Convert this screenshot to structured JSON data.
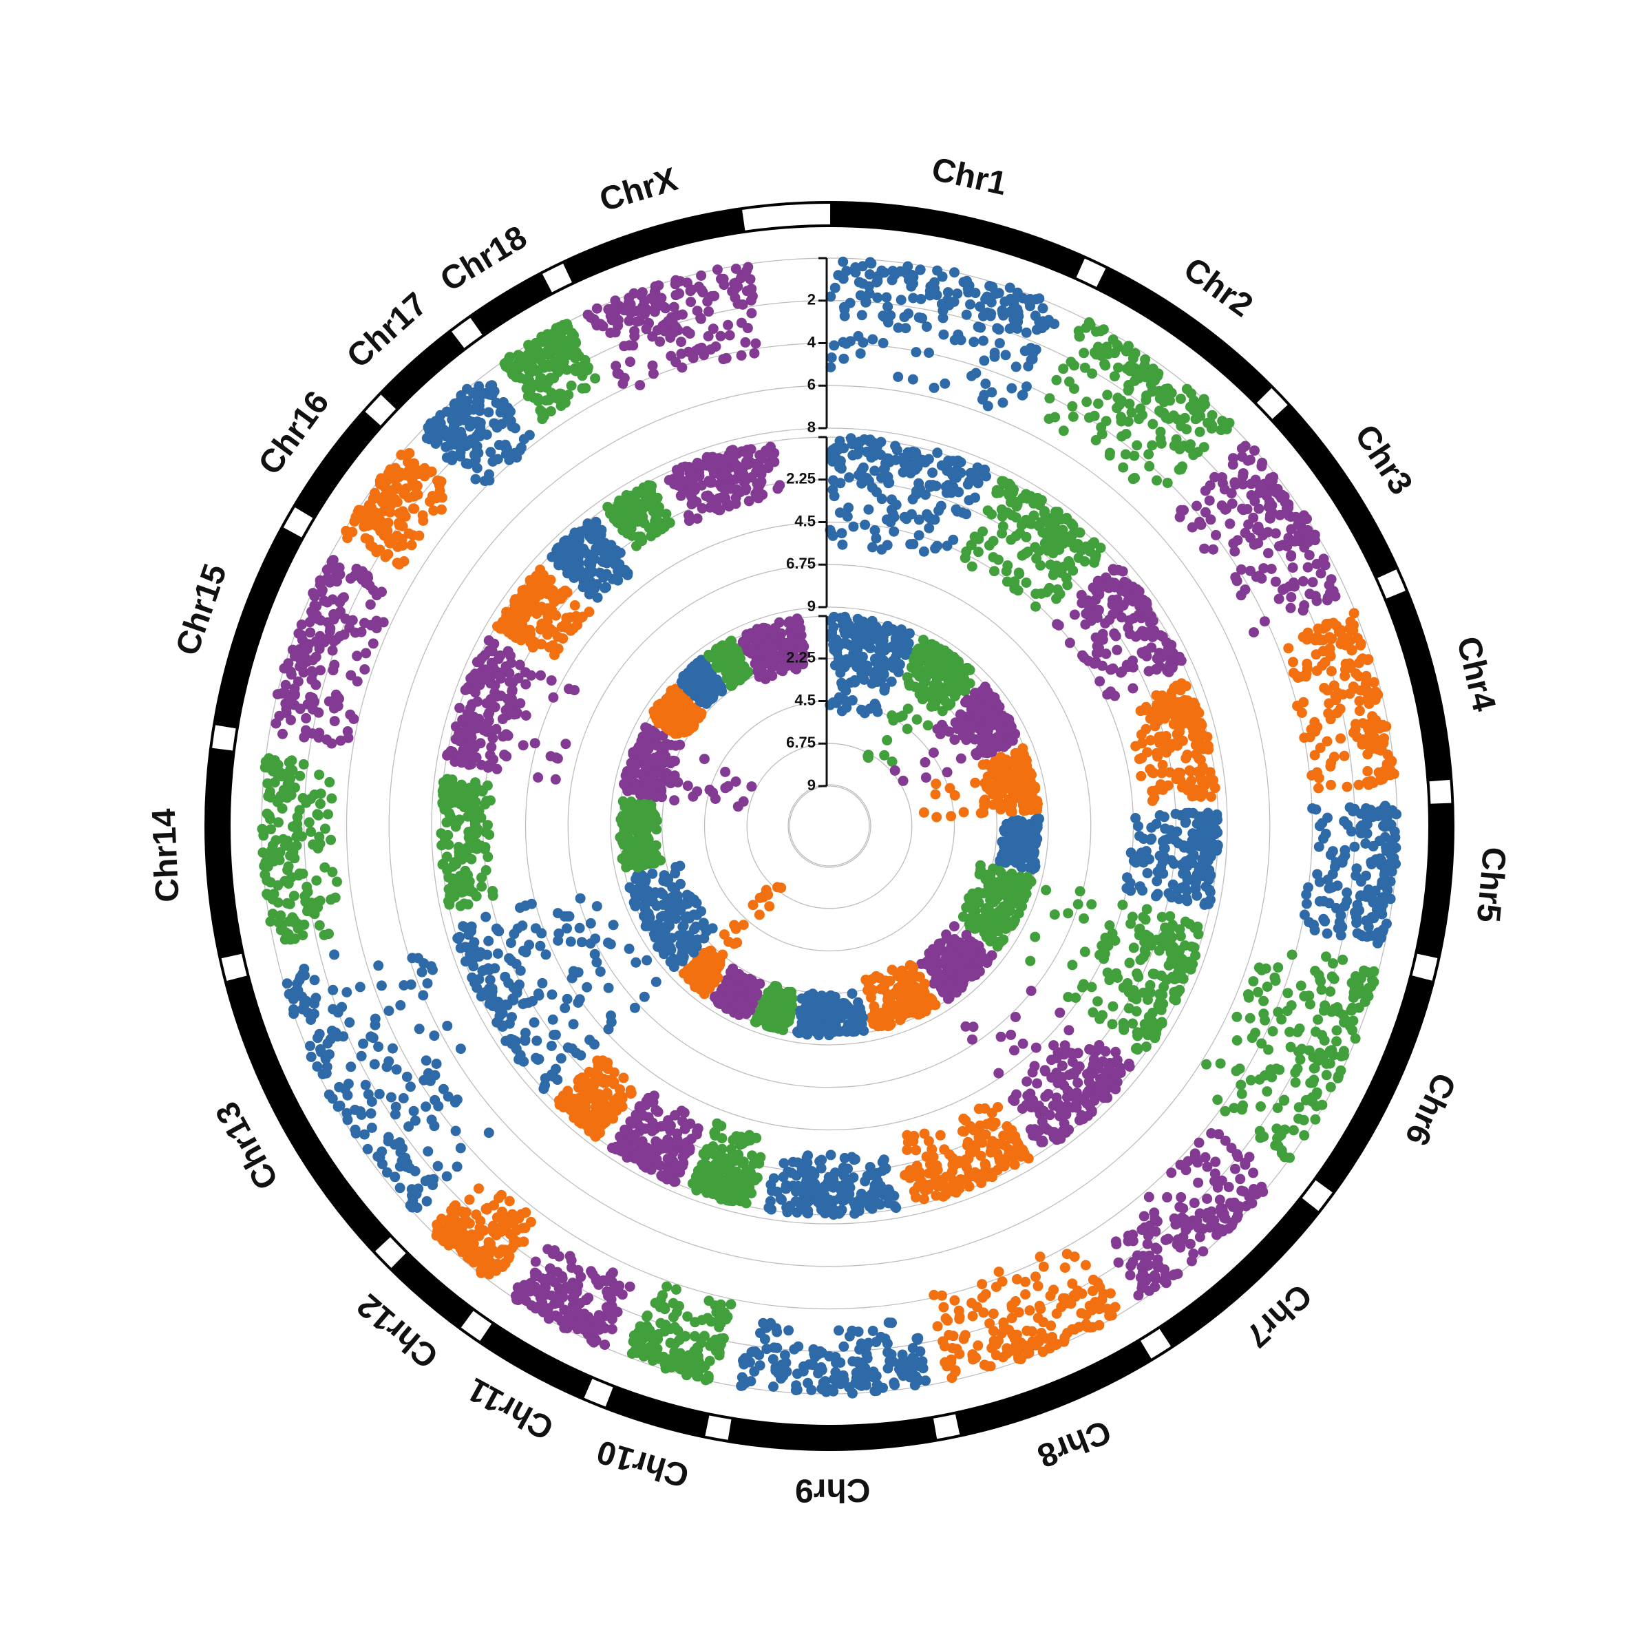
{
  "colors": {
    "blue": "#2e6aa8",
    "green": "#41a03c",
    "purple": "#833a92",
    "orange": "#f2700f",
    "outer_band": "#000000",
    "grid": "#bdbdbd"
  },
  "chart_data": {
    "type": "scatter",
    "layout": "circular-manhattan",
    "title": "",
    "xlabel": "",
    "ylabel": "",
    "grid": true,
    "legend": "none",
    "chromosomes": [
      {
        "name": "Chr1",
        "length": 175,
        "color": "blue"
      },
      {
        "name": "Chr2",
        "length": 137,
        "color": "green"
      },
      {
        "name": "Chr3",
        "length": 132,
        "color": "purple"
      },
      {
        "name": "Chr4",
        "length": 130,
        "color": "orange"
      },
      {
        "name": "Chr5",
        "length": 104,
        "color": "blue"
      },
      {
        "name": "Chr6",
        "length": 157,
        "color": "green"
      },
      {
        "name": "Chr7",
        "length": 134,
        "color": "purple"
      },
      {
        "name": "Chr8",
        "length": 138,
        "color": "orange"
      },
      {
        "name": "Chr9",
        "length": 140,
        "color": "blue"
      },
      {
        "name": "Chr10",
        "length": 69,
        "color": "green"
      },
      {
        "name": "Chr11",
        "length": 79,
        "color": "purple"
      },
      {
        "name": "Chr12",
        "length": 61,
        "color": "orange"
      },
      {
        "name": "Chr13",
        "length": 208,
        "color": "blue"
      },
      {
        "name": "Chr14",
        "length": 141,
        "color": "green"
      },
      {
        "name": "Chr15",
        "length": 140,
        "color": "purple"
      },
      {
        "name": "Chr16",
        "length": 79,
        "color": "orange"
      },
      {
        "name": "Chr17",
        "length": 63,
        "color": "blue"
      },
      {
        "name": "Chr18",
        "length": 56,
        "color": "green"
      },
      {
        "name": "ChrX",
        "length": 125,
        "color": "purple"
      }
    ],
    "tracks": [
      {
        "track": "outer",
        "ylim": [
          0,
          8
        ],
        "tick_labels": [
          "2",
          "4",
          "6",
          "8"
        ],
        "series": [
          {
            "chromosome": "Chr1",
            "values": [
              1.0,
              1.6,
              2.3,
              2.8,
              3.4,
              4.2,
              5.1,
              5.6
            ]
          },
          {
            "chromosome": "Chr2",
            "values": [
              1.0,
              1.8,
              2.6,
              3.5,
              4.3,
              5.3
            ]
          },
          {
            "chromosome": "Chr3",
            "values": [
              1.0,
              1.8,
              2.5,
              3.2,
              4.2,
              4.9
            ]
          },
          {
            "chromosome": "Chr4",
            "values": [
              1.0,
              1.6,
              2.3,
              3.0,
              3.6,
              4.0
            ]
          },
          {
            "chromosome": "Chr5",
            "values": [
              1.0,
              1.8,
              2.6,
              3.4,
              4.1
            ]
          },
          {
            "chromosome": "Chr6",
            "values": [
              1.0,
              2.0,
              3.0,
              3.9,
              4.8,
              5.8
            ]
          },
          {
            "chromosome": "Chr7",
            "values": [
              1.0,
              1.7,
              2.4,
              3.1,
              3.9
            ]
          },
          {
            "chromosome": "Chr8",
            "values": [
              1.0,
              1.8,
              2.6,
              3.4,
              4.3
            ]
          },
          {
            "chromosome": "Chr9",
            "values": [
              1.0,
              1.5,
              2.0,
              2.6,
              3.2
            ]
          },
          {
            "chromosome": "Chr10",
            "values": [
              1.0,
              1.9,
              2.8,
              3.8
            ]
          },
          {
            "chromosome": "Chr11",
            "values": [
              1.0,
              1.8,
              2.7,
              3.4
            ]
          },
          {
            "chromosome": "Chr12",
            "values": [
              1.0,
              1.9,
              2.8,
              3.6
            ]
          },
          {
            "chromosome": "Chr13",
            "values": [
              1.0,
              2.1,
              3.2,
              4.4,
              5.6,
              6.9
            ]
          },
          {
            "chromosome": "Chr14",
            "values": [
              1.0,
              1.6,
              2.1,
              2.7,
              3.4
            ]
          },
          {
            "chromosome": "Chr15",
            "values": [
              1.0,
              1.7,
              2.4,
              3.1,
              3.8
            ]
          },
          {
            "chromosome": "Chr16",
            "values": [
              1.0,
              1.8,
              2.5,
              3.2
            ]
          },
          {
            "chromosome": "Chr17",
            "values": [
              1.0,
              2.0,
              3.0,
              4.0
            ]
          },
          {
            "chromosome": "Chr18",
            "values": [
              1.0,
              1.8,
              2.6,
              3.3
            ]
          },
          {
            "chromosome": "ChrX",
            "values": [
              1.0,
              1.9,
              2.8,
              3.6,
              4.2
            ]
          }
        ]
      },
      {
        "track": "middle",
        "ylim": [
          0,
          9
        ],
        "tick_labels": [
          "2.25",
          "4.5",
          "6.75",
          "9"
        ],
        "series": [
          {
            "chromosome": "Chr1",
            "values": [
              1.0,
              1.9,
              2.9,
              3.9,
              4.9,
              5.8
            ]
          },
          {
            "chromosome": "Chr2",
            "values": [
              1.0,
              2.0,
              3.1,
              4.0,
              5.0
            ]
          },
          {
            "chromosome": "Chr3",
            "values": [
              1.0,
              1.9,
              2.8,
              3.7,
              4.6
            ]
          },
          {
            "chromosome": "Chr4",
            "values": [
              1.0,
              1.8,
              2.5,
              3.2,
              4.0
            ]
          },
          {
            "chromosome": "Chr5",
            "values": [
              1.0,
              1.9,
              2.9,
              3.9,
              4.6
            ]
          },
          {
            "chromosome": "Chr6",
            "values": [
              1.0,
              2.0,
              3.0,
              4.0,
              4.9,
              8.8
            ]
          },
          {
            "chromosome": "Chr7",
            "values": [
              1.0,
              1.7,
              2.4,
              3.2,
              4.0,
              9.2
            ]
          },
          {
            "chromosome": "Chr8",
            "values": [
              1.0,
              1.6,
              2.3,
              3.0,
              3.8
            ]
          },
          {
            "chromosome": "Chr9",
            "values": [
              1.0,
              1.5,
              2.1,
              2.6,
              3.2
            ]
          },
          {
            "chromosome": "Chr10",
            "values": [
              1.0,
              1.9,
              2.8,
              3.8
            ]
          },
          {
            "chromosome": "Chr11",
            "values": [
              1.0,
              1.9,
              2.7,
              3.6
            ]
          },
          {
            "chromosome": "Chr12",
            "values": [
              1.0,
              1.8,
              2.6,
              3.5
            ]
          },
          {
            "chromosome": "Chr13",
            "values": [
              1.0,
              2.4,
              3.8,
              5.3,
              6.8,
              8.6
            ]
          },
          {
            "chromosome": "Chr14",
            "values": [
              1.0,
              1.6,
              2.1,
              2.7
            ]
          },
          {
            "chromosome": "Chr15",
            "values": [
              1.0,
              1.7,
              2.4,
              3.1,
              6.1
            ]
          },
          {
            "chromosome": "Chr16",
            "values": [
              1.0,
              1.9,
              2.8,
              3.6
            ]
          },
          {
            "chromosome": "Chr17",
            "values": [
              1.0,
              1.9,
              2.8,
              3.6
            ]
          },
          {
            "chromosome": "Chr18",
            "values": [
              1.0,
              1.8,
              2.6
            ]
          },
          {
            "chromosome": "ChrX",
            "values": [
              1.0,
              1.8,
              2.5,
              3.1
            ]
          }
        ]
      },
      {
        "track": "inner",
        "ylim": [
          0,
          9
        ],
        "tick_labels": [
          "2.25",
          "4.5",
          "6.75",
          "9"
        ],
        "series": [
          {
            "chromosome": "Chr1",
            "values": [
              1.0,
              1.7,
              2.3,
              2.9,
              4.3,
              5.0
            ]
          },
          {
            "chromosome": "Chr2",
            "values": [
              1.0,
              1.6,
              2.2,
              2.8,
              7.2
            ]
          },
          {
            "chromosome": "Chr3",
            "values": [
              1.0,
              1.5,
              2.0,
              2.6,
              7.0
            ]
          },
          {
            "chromosome": "Chr4",
            "values": [
              1.0,
              1.5,
              2.0,
              2.6,
              6.5
            ]
          },
          {
            "chromosome": "Chr5",
            "values": [
              1.0,
              1.5,
              2.0
            ]
          },
          {
            "chromosome": "Chr6",
            "values": [
              1.0,
              1.6,
              2.2,
              2.9
            ]
          },
          {
            "chromosome": "Chr7",
            "values": [
              1.0,
              1.5,
              2.1,
              2.7
            ]
          },
          {
            "chromosome": "Chr8",
            "values": [
              1.0,
              1.6,
              2.3,
              2.9
            ]
          },
          {
            "chromosome": "Chr9",
            "values": [
              1.0,
              1.4,
              1.8,
              2.2
            ]
          },
          {
            "chromosome": "Chr10",
            "values": [
              1.0,
              1.6,
              2.2
            ]
          },
          {
            "chromosome": "Chr11",
            "values": [
              1.0,
              1.5,
              2.0
            ]
          },
          {
            "chromosome": "Chr12",
            "values": [
              1.0,
              1.5,
              2.0,
              7.6
            ]
          },
          {
            "chromosome": "Chr13",
            "values": [
              1.0,
              1.7,
              2.3,
              3.0
            ]
          },
          {
            "chromosome": "Chr14",
            "values": [
              1.0,
              1.5,
              2.0
            ]
          },
          {
            "chromosome": "Chr15",
            "values": [
              1.0,
              1.6,
              2.3,
              6.6
            ]
          },
          {
            "chromosome": "Chr16",
            "values": [
              1.0,
              1.6,
              2.2
            ]
          },
          {
            "chromosome": "Chr17",
            "values": [
              1.0,
              1.5,
              2.0
            ]
          },
          {
            "chromosome": "Chr18",
            "values": [
              1.0,
              1.6,
              2.1
            ]
          },
          {
            "chromosome": "ChrX",
            "values": [
              1.0,
              1.6,
              2.2,
              2.7
            ]
          }
        ]
      }
    ]
  }
}
